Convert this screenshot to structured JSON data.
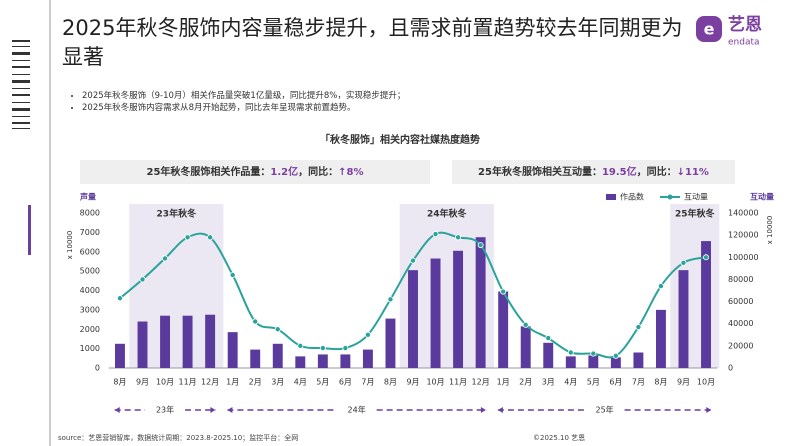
{
  "header": {
    "title": "2025年秋冬服饰内容量稳步提升，且需求前置趋势较去年同期更为显著",
    "bullets": [
      "2025年秋冬服饰（9-10月）相关作品量突破1亿量级，同比提升8%，实现稳步提升；",
      "2025年秋冬服饰内容需求从8月开始起势，同比去年呈现需求前置趋势。"
    ],
    "logo": {
      "name": "艺恩",
      "sub": "endata"
    }
  },
  "chart_data": {
    "type": "bar",
    "title": "「秋冬服饰」相关内容社媒热度趋势",
    "stats": [
      {
        "text": "25年秋冬服饰相关作品量：",
        "value": "1.2亿",
        "sep": "，同比：",
        "change": "↑8%"
      },
      {
        "text": "25年秋冬服饰相关互动量：",
        "value": "19.5亿",
        "sep": "，同比：",
        "change": "↓11%"
      }
    ],
    "y_label": "声量",
    "y2_label": "互动量",
    "y_unit": "x 10000",
    "y2_unit": "x 10000",
    "categories": [
      "8月",
      "9月",
      "10月",
      "11月",
      "12月",
      "1月",
      "2月",
      "3月",
      "4月",
      "5月",
      "6月",
      "7月",
      "8月",
      "9月",
      "10月",
      "11月",
      "12月",
      "1月",
      "2月",
      "3月",
      "4月",
      "5月",
      "6月",
      "7月",
      "8月",
      "9月",
      "10月"
    ],
    "year_groups": [
      "23年",
      "24年",
      "25年"
    ],
    "highlights": [
      "23年秋冬",
      "24年秋冬",
      "25年秋冬"
    ],
    "series": [
      {
        "name": "作品数",
        "color": "#5b3a9e",
        "values": [
          1250,
          2400,
          2700,
          2700,
          2750,
          1850,
          950,
          1250,
          600,
          700,
          700,
          950,
          2550,
          5050,
          5650,
          6050,
          6750,
          3950,
          2150,
          1300,
          600,
          650,
          550,
          800,
          3000,
          5050,
          6550
        ]
      },
      {
        "name": "互动量",
        "color": "#2aa39a",
        "axis": "y2",
        "values": [
          63000,
          80000,
          99000,
          118000,
          118000,
          84000,
          42000,
          35000,
          20000,
          18000,
          18000,
          30000,
          62000,
          97000,
          121000,
          118000,
          111000,
          69000,
          39000,
          27000,
          14000,
          13000,
          11000,
          37000,
          74000,
          95000,
          100000
        ]
      }
    ],
    "ylim": [
      0,
      8000
    ],
    "yticks": [
      0,
      1000,
      2000,
      3000,
      4000,
      5000,
      6000,
      7000,
      8000
    ],
    "y2lim": [
      0,
      140000
    ],
    "y2ticks": [
      0,
      20000,
      40000,
      60000,
      80000,
      100000,
      120000,
      140000
    ],
    "grid": false,
    "legend": "top-right"
  },
  "footer": {
    "source": "source：艺恩营销智库，数据统计周期：2023.8-2025.10；监控平台：全网",
    "copyright": "©2025.10 艺恩"
  }
}
